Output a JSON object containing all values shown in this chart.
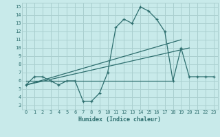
{
  "line1_x": [
    0,
    1,
    2,
    3,
    4,
    5,
    6,
    7,
    8,
    9,
    10,
    11,
    12,
    13,
    14,
    15,
    16,
    17,
    18,
    19,
    20,
    21,
    22,
    23
  ],
  "line1_y": [
    5.5,
    6.5,
    6.5,
    6.0,
    5.5,
    6.0,
    6.0,
    3.5,
    3.5,
    4.5,
    7.0,
    12.5,
    13.5,
    13.0,
    15.0,
    14.5,
    13.5,
    12.0,
    6.0,
    10.0,
    6.5,
    6.5,
    6.5,
    6.5
  ],
  "line2_x": [
    0,
    19
  ],
  "line2_y": [
    5.5,
    11.0
  ],
  "line3_x": [
    0,
    20
  ],
  "line3_y": [
    5.5,
    10.0
  ],
  "line4_x": [
    0,
    18
  ],
  "line4_y": [
    6.0,
    6.0
  ],
  "color": "#2d6e6e",
  "bg_color": "#c8eaea",
  "grid_color": "#aacfcf",
  "xlabel": "Humidex (Indice chaleur)",
  "xlim": [
    -0.5,
    23.5
  ],
  "ylim": [
    2.5,
    15.5
  ],
  "yticks": [
    3,
    4,
    5,
    6,
    7,
    8,
    9,
    10,
    11,
    12,
    13,
    14,
    15
  ],
  "xticks": [
    0,
    1,
    2,
    3,
    4,
    5,
    6,
    7,
    8,
    9,
    10,
    11,
    12,
    13,
    14,
    15,
    16,
    17,
    18,
    19,
    20,
    21,
    22,
    23
  ]
}
